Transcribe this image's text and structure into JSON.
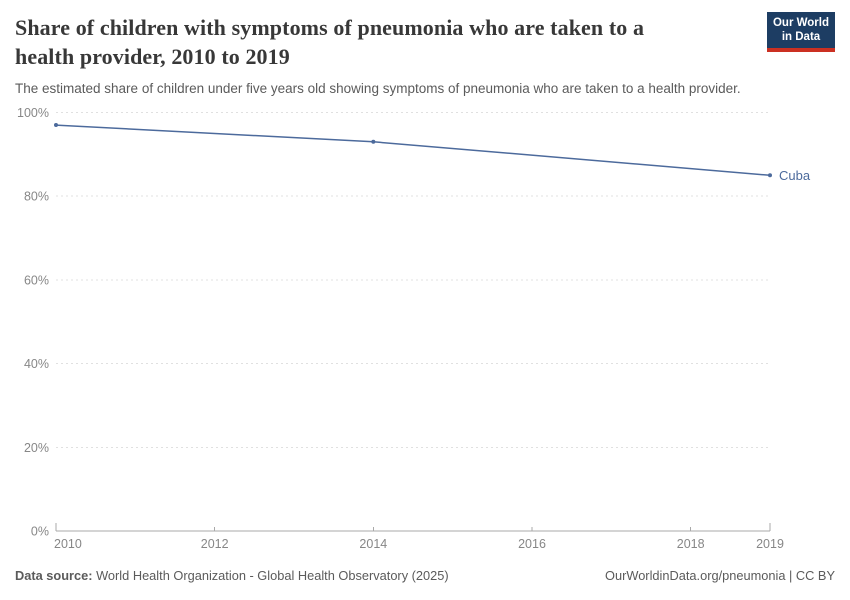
{
  "colors": {
    "line": "#4C6A9C",
    "entity_label": "#4C6A9C",
    "tick_text": "#878787",
    "gridline": "#e0e0e0",
    "axis": "#a9a9a9",
    "logo_background": "#1d3d63",
    "logo_underline": "#cb3022",
    "title_text": "#383838",
    "subtitle_text": "#5b5b5b",
    "footer_text": "#5b5b5b"
  },
  "header": {
    "title_line1": "Share of children with symptoms of pneumonia who are taken to a",
    "title_line2": "health provider, 2010 to 2019",
    "subtitle": "The estimated share of children under five years old showing symptoms of pneumonia who are taken to a health provider."
  },
  "logo": {
    "line1": "Our World",
    "line2": "in Data"
  },
  "chart_data": {
    "type": "line",
    "title": "Share of children with symptoms of pneumonia who are taken to a health provider, 2010 to 2019",
    "xlabel": "",
    "ylabel": "",
    "xlim": [
      2010,
      2019
    ],
    "ylim": [
      0,
      100
    ],
    "xticks": [
      2010,
      2012,
      2014,
      2016,
      2018,
      2019
    ],
    "yticks": [
      0,
      20,
      40,
      60,
      80,
      100
    ],
    "ytick_suffix": "%",
    "grid": "dashed-horizontal",
    "legend_position": "end-of-line-label",
    "series": [
      {
        "name": "Cuba",
        "points": [
          {
            "x": 2010,
            "y": 97
          },
          {
            "x": 2014,
            "y": 93
          },
          {
            "x": 2019,
            "y": 85
          }
        ]
      }
    ]
  },
  "footer": {
    "datasource_label": "Data source:",
    "datasource_value": " World Health Organization - Global Health Observatory (2025)",
    "attribution": "OurWorldinData.org/pneumonia | CC BY"
  }
}
